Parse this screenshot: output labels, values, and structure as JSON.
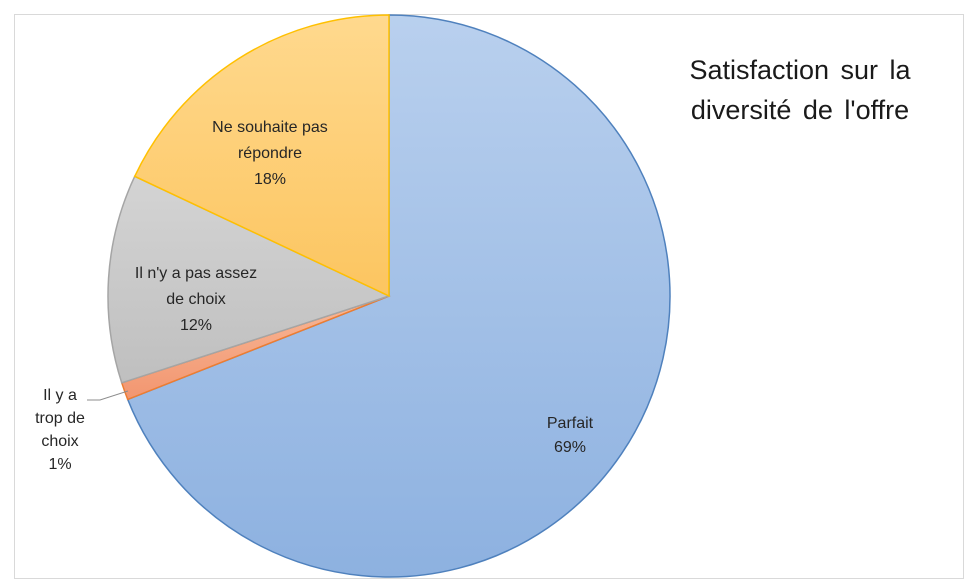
{
  "chart_data": {
    "type": "pie",
    "title_lines": [
      "Satisfaction sur la",
      "diversité de l'offre"
    ],
    "slices": [
      {
        "label_lines": [
          "Parfait"
        ],
        "value": 69,
        "value_text": "69%",
        "color": "#9dbde6",
        "edge": "#4f81bd"
      },
      {
        "label_lines": [
          "Il y a",
          "trop de",
          "choix"
        ],
        "value": 1,
        "value_text": "1%",
        "color": "#f4a582",
        "edge": "#ed7d31"
      },
      {
        "label_lines": [
          "Il n'y a pas assez",
          "de choix"
        ],
        "value": 12,
        "value_text": "12%",
        "color": "#c9c9c9",
        "edge": "#a5a5a5"
      },
      {
        "label_lines": [
          "Ne souhaite pas",
          "répondre"
        ],
        "value": 18,
        "value_text": "18%",
        "color": "#fdd07a",
        "edge": "#ffc000"
      }
    ],
    "legend": "none"
  }
}
